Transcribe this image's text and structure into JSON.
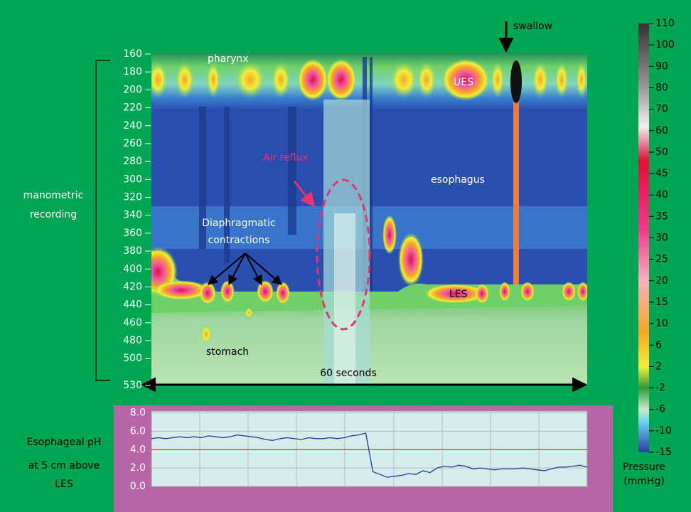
{
  "manometry": {
    "yticks": [
      160,
      180,
      200,
      220,
      240,
      260,
      280,
      300,
      320,
      340,
      360,
      380,
      400,
      420,
      440,
      460,
      480,
      500,
      530
    ],
    "ylim": [
      160,
      530
    ],
    "side_label": [
      "manometric",
      "recording"
    ],
    "swallow": "swallow",
    "duration": "60 seconds",
    "pharynx": "pharynx",
    "ues": "UES",
    "esophagus": "esophagus",
    "les": "LES",
    "stomach": "stomach",
    "air_reflux": "Air reflux",
    "diaphragmatic": [
      "Diaphragmatic",
      "contractions"
    ]
  },
  "colorbar": {
    "ticks": [
      110,
      100,
      90,
      80,
      70,
      60,
      50,
      45,
      40,
      35,
      30,
      25,
      20,
      15,
      10,
      6,
      2,
      -2,
      -6,
      -10,
      -15
    ],
    "title": [
      "Pressure",
      "(mmHg)"
    ]
  },
  "chart_data": {
    "type": "line",
    "ylabel": [
      "Esophageal pH",
      "at 5 cm above",
      "LES"
    ],
    "ylim": [
      0,
      8.2
    ],
    "yticks": [
      {
        "value": 0,
        "label": "0.0"
      },
      {
        "value": 2,
        "label": "2.0"
      },
      {
        "value": 4,
        "label": "4.0"
      },
      {
        "value": 6,
        "label": "6.0"
      },
      {
        "value": 8,
        "label": "8.0"
      }
    ],
    "threshold": 4,
    "threshold_color": "#d43a2a",
    "series": [
      {
        "color": "#1b3a9e",
        "values": [
          5.2,
          5.3,
          5.2,
          5.3,
          5.4,
          5.3,
          5.4,
          5.3,
          5.5,
          5.4,
          5.3,
          5.4,
          5.6,
          5.5,
          5.4,
          5.3,
          5.1,
          5.0,
          5.2,
          5.3,
          5.2,
          5.1,
          5.3,
          5.2,
          5.2,
          5.3,
          5.2,
          5.3,
          5.5,
          5.6,
          5.8,
          1.6,
          1.3,
          1.0,
          1.1,
          1.2,
          1.4,
          1.3,
          1.7,
          1.5,
          2.0,
          2.2,
          2.1,
          2.3,
          2.2,
          1.9,
          2.0,
          1.9,
          1.8,
          1.9,
          1.9,
          1.9,
          2.0,
          1.9,
          1.8,
          1.7,
          1.9,
          2.1,
          2.1,
          2.2,
          2.3,
          2.1
        ]
      }
    ]
  }
}
